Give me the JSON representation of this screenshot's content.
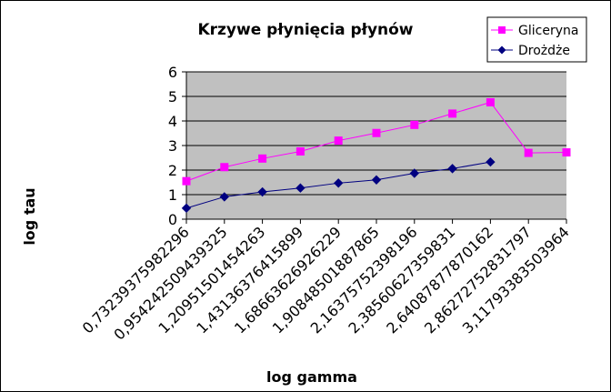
{
  "chart_data": {
    "type": "line",
    "title": "Krzywe płynięcia płynów",
    "xlabel": "log gamma",
    "ylabel": "log tau",
    "categories": [
      "0,73239375982296",
      "0,954242509439325",
      "1,20951501454263",
      "1,43136376415899",
      "1,68663626926229",
      "1,90848501887865",
      "2,16375752398196",
      "2,38560627359831",
      "2,64087877870162",
      "2,86272752831797",
      "3,11793383503964"
    ],
    "ylim": [
      0,
      6
    ],
    "yticks": [
      "0",
      "1",
      "2",
      "3",
      "4",
      "5",
      "6"
    ],
    "grid": true,
    "legend_position": "top-right",
    "series": [
      {
        "name": "Gliceryna",
        "color": "#ff00ff",
        "marker": "square",
        "values": [
          1.55,
          2.12,
          2.47,
          2.76,
          3.2,
          3.51,
          3.84,
          4.3,
          4.76,
          2.7,
          2.72
        ]
      },
      {
        "name": "Drożdże",
        "color": "#000080",
        "marker": "diamond",
        "values": [
          0.45,
          0.91,
          1.11,
          1.27,
          1.47,
          1.6,
          1.87,
          2.06,
          2.33,
          null,
          null
        ]
      }
    ]
  }
}
